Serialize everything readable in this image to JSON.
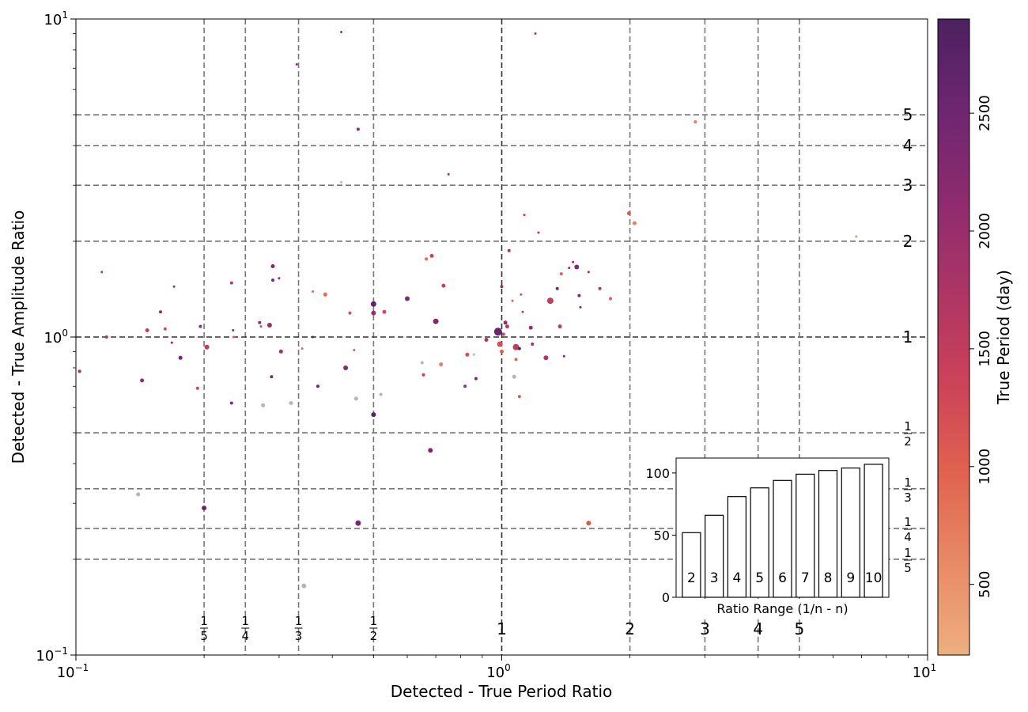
{
  "chart_data": {
    "type": "scatter",
    "x_scale": "log",
    "y_scale": "log",
    "xlim": [
      0.1,
      10
    ],
    "ylim": [
      0.1,
      10
    ],
    "xlabel": "Detected - True Period Ratio",
    "ylabel": "Detected - True Amplitude Ratio",
    "x_ticks": [
      {
        "value": 0.1,
        "base": "10",
        "exp": "−1"
      },
      {
        "value": 1,
        "base": "10",
        "exp": "0"
      },
      {
        "value": 10,
        "base": "10",
        "exp": "1"
      }
    ],
    "y_ticks": [
      {
        "value": 0.1,
        "base": "10",
        "exp": "−1"
      },
      {
        "value": 1,
        "base": "10",
        "exp": "0"
      },
      {
        "value": 10,
        "base": "10",
        "exp": "1"
      }
    ],
    "reference_lines": [
      {
        "value": 0.2,
        "num": "1",
        "den": "5"
      },
      {
        "value": 0.25,
        "num": "1",
        "den": "4"
      },
      {
        "value": 0.3333,
        "num": "1",
        "den": "3"
      },
      {
        "value": 0.5,
        "num": "1",
        "den": "2"
      },
      {
        "value": 1,
        "text": "1"
      },
      {
        "value": 2,
        "text": "2"
      },
      {
        "value": 3,
        "text": "3"
      },
      {
        "value": 4,
        "text": "4"
      },
      {
        "value": 5,
        "text": "5"
      }
    ],
    "colorbar": {
      "label": "True Period (day)",
      "range": [
        200,
        2900
      ],
      "ticks": [
        {
          "value": 500,
          "label": "500"
        },
        {
          "value": 1000,
          "label": "1000"
        },
        {
          "value": 1500,
          "label": "1500"
        },
        {
          "value": 2000,
          "label": "2000"
        },
        {
          "value": 2500,
          "label": "2500"
        }
      ],
      "colors": [
        "#edaf7f",
        "#e88a66",
        "#e0634f",
        "#cc4259",
        "#ad3565",
        "#8e2b6e",
        "#6e2670",
        "#4c2160"
      ]
    },
    "points": [
      {
        "x": 0.102,
        "y": 0.78,
        "p": 2000,
        "s": 2
      },
      {
        "x": 0.115,
        "y": 1.6,
        "p": 1700,
        "s": 1.5
      },
      {
        "x": 0.118,
        "y": 1.0,
        "p": 1800,
        "s": 2
      },
      {
        "x": 0.14,
        "y": 0.32,
        "p": null,
        "s": 2.5
      },
      {
        "x": 0.143,
        "y": 0.73,
        "p": 2100,
        "s": 2.5
      },
      {
        "x": 0.147,
        "y": 1.05,
        "p": 1500,
        "s": 2.5
      },
      {
        "x": 0.158,
        "y": 1.2,
        "p": 2100,
        "s": 2
      },
      {
        "x": 0.162,
        "y": 1.06,
        "p": 1200,
        "s": 2
      },
      {
        "x": 0.168,
        "y": 0.96,
        "p": 2200,
        "s": 1.5
      },
      {
        "x": 0.17,
        "y": 1.44,
        "p": 2000,
        "s": 1.5
      },
      {
        "x": 0.176,
        "y": 0.86,
        "p": 2400,
        "s": 2.5
      },
      {
        "x": 0.193,
        "y": 0.69,
        "p": 1400,
        "s": 2
      },
      {
        "x": 0.196,
        "y": 1.08,
        "p": 2200,
        "s": 2
      },
      {
        "x": 0.2,
        "y": 0.29,
        "p": 2600,
        "s": 3
      },
      {
        "x": 0.203,
        "y": 0.93,
        "p": 1500,
        "s": 3
      },
      {
        "x": 0.232,
        "y": 1.48,
        "p": 1600,
        "s": 2
      },
      {
        "x": 0.232,
        "y": 0.62,
        "p": 2200,
        "s": 2
      },
      {
        "x": 0.234,
        "y": 1.05,
        "p": 2300,
        "s": 1.5
      },
      {
        "x": 0.235,
        "y": 1.0,
        "p": 1100,
        "s": 1.5
      },
      {
        "x": 0.27,
        "y": 1.11,
        "p": 2100,
        "s": 2
      },
      {
        "x": 0.272,
        "y": 1.08,
        "p": 1300,
        "s": 1.5
      },
      {
        "x": 0.275,
        "y": 0.61,
        "p": null,
        "s": 2.5
      },
      {
        "x": 0.285,
        "y": 1.09,
        "p": 2000,
        "s": 3
      },
      {
        "x": 0.288,
        "y": 0.75,
        "p": 2500,
        "s": 2
      },
      {
        "x": 0.29,
        "y": 1.67,
        "p": 2300,
        "s": 2.5
      },
      {
        "x": 0.29,
        "y": 1.51,
        "p": 2400,
        "s": 2
      },
      {
        "x": 0.3,
        "y": 1.53,
        "p": 2200,
        "s": 1.5
      },
      {
        "x": 0.303,
        "y": 0.9,
        "p": 1900,
        "s": 2.5
      },
      {
        "x": 0.32,
        "y": 0.62,
        "p": null,
        "s": 2.5
      },
      {
        "x": 0.33,
        "y": 7.2,
        "p": 2000,
        "s": 1.5
      },
      {
        "x": 0.34,
        "y": 0.92,
        "p": 900,
        "s": 1.5
      },
      {
        "x": 0.343,
        "y": 0.165,
        "p": null,
        "s": 3
      },
      {
        "x": 0.36,
        "y": 1.39,
        "p": 900,
        "s": 1.5
      },
      {
        "x": 0.36,
        "y": 1.0,
        "p": 2800,
        "s": 1.5
      },
      {
        "x": 0.37,
        "y": 0.7,
        "p": 2600,
        "s": 2
      },
      {
        "x": 0.385,
        "y": 1.36,
        "p": 900,
        "s": 2.5
      },
      {
        "x": 0.42,
        "y": 9.1,
        "p": 2000,
        "s": 1.5
      },
      {
        "x": 0.42,
        "y": 3.07,
        "p": null,
        "s": 1.5
      },
      {
        "x": 0.43,
        "y": 0.8,
        "p": 2200,
        "s": 3
      },
      {
        "x": 0.44,
        "y": 1.19,
        "p": 1200,
        "s": 2
      },
      {
        "x": 0.45,
        "y": 0.91,
        "p": 1100,
        "s": 1.5
      },
      {
        "x": 0.455,
        "y": 0.64,
        "p": null,
        "s": 2.5
      },
      {
        "x": 0.46,
        "y": 4.5,
        "p": 2100,
        "s": 2
      },
      {
        "x": 0.46,
        "y": 0.26,
        "p": 2400,
        "s": 3.5
      },
      {
        "x": 0.5,
        "y": 1.27,
        "p": 2700,
        "s": 3.5
      },
      {
        "x": 0.5,
        "y": 1.19,
        "p": 2000,
        "s": 3
      },
      {
        "x": 0.5,
        "y": 0.57,
        "p": 2800,
        "s": 3
      },
      {
        "x": 0.52,
        "y": 0.66,
        "p": null,
        "s": 2
      },
      {
        "x": 0.53,
        "y": 1.2,
        "p": 1300,
        "s": 2.5
      },
      {
        "x": 0.6,
        "y": 1.32,
        "p": 2300,
        "s": 3
      },
      {
        "x": 0.65,
        "y": 0.83,
        "p": null,
        "s": 2
      },
      {
        "x": 0.655,
        "y": 0.76,
        "p": 1400,
        "s": 2
      },
      {
        "x": 0.665,
        "y": 1.76,
        "p": 900,
        "s": 2
      },
      {
        "x": 0.68,
        "y": 0.44,
        "p": 2300,
        "s": 3
      },
      {
        "x": 0.685,
        "y": 1.8,
        "p": 1400,
        "s": 2.5
      },
      {
        "x": 0.7,
        "y": 1.12,
        "p": 2300,
        "s": 3.5
      },
      {
        "x": 0.72,
        "y": 0.82,
        "p": 700,
        "s": 2.5
      },
      {
        "x": 0.73,
        "y": 1.45,
        "p": 1500,
        "s": 2.5
      },
      {
        "x": 0.75,
        "y": 3.25,
        "p": 1900,
        "s": 1.5
      },
      {
        "x": 0.82,
        "y": 0.7,
        "p": 2100,
        "s": 2
      },
      {
        "x": 0.83,
        "y": 0.88,
        "p": 1200,
        "s": 2.5
      },
      {
        "x": 0.86,
        "y": 0.88,
        "p": null,
        "s": 1.5
      },
      {
        "x": 0.87,
        "y": 0.74,
        "p": 2400,
        "s": 2
      },
      {
        "x": 0.92,
        "y": 0.98,
        "p": 1800,
        "s": 2.5
      },
      {
        "x": 0.98,
        "y": 1.04,
        "p": 2600,
        "s": 5
      },
      {
        "x": 0.99,
        "y": 0.95,
        "p": 1200,
        "s": 3.5
      },
      {
        "x": 1.0,
        "y": 0.9,
        "p": 1000,
        "s": 2.5
      },
      {
        "x": 1.0,
        "y": 1.44,
        "p": 2000,
        "s": 2
      },
      {
        "x": 1.01,
        "y": 1.02,
        "p": 1300,
        "s": 2
      },
      {
        "x": 1.02,
        "y": 1.11,
        "p": 2000,
        "s": 2.5
      },
      {
        "x": 1.03,
        "y": 1.08,
        "p": 1600,
        "s": 2.5
      },
      {
        "x": 1.04,
        "y": 1.87,
        "p": 1800,
        "s": 2
      },
      {
        "x": 1.06,
        "y": 1.3,
        "p": 1000,
        "s": 1.5
      },
      {
        "x": 1.07,
        "y": 0.75,
        "p": null,
        "s": 2.5
      },
      {
        "x": 1.08,
        "y": 0.93,
        "p": 1500,
        "s": 4
      },
      {
        "x": 1.08,
        "y": 0.85,
        "p": 1000,
        "s": 2
      },
      {
        "x": 1.1,
        "y": 0.92,
        "p": 2800,
        "s": 2
      },
      {
        "x": 1.1,
        "y": 0.65,
        "p": 1100,
        "s": 2
      },
      {
        "x": 1.11,
        "y": 1.36,
        "p": 1300,
        "s": 1.5
      },
      {
        "x": 1.12,
        "y": 1.2,
        "p": 1600,
        "s": 1.5
      },
      {
        "x": 1.13,
        "y": 2.42,
        "p": 1500,
        "s": 1.5
      },
      {
        "x": 1.17,
        "y": 1.07,
        "p": 2000,
        "s": 2.5
      },
      {
        "x": 1.18,
        "y": 0.95,
        "p": 1900,
        "s": 2
      },
      {
        "x": 1.2,
        "y": 9.0,
        "p": 1700,
        "s": 1.5
      },
      {
        "x": 1.22,
        "y": 2.13,
        "p": 1700,
        "s": 1.5
      },
      {
        "x": 1.27,
        "y": 0.86,
        "p": 1700,
        "s": 3
      },
      {
        "x": 1.3,
        "y": 1.3,
        "p": 1500,
        "s": 4
      },
      {
        "x": 1.35,
        "y": 1.42,
        "p": 2400,
        "s": 2
      },
      {
        "x": 1.37,
        "y": 1.08,
        "p": 1500,
        "s": 2.5
      },
      {
        "x": 1.38,
        "y": 1.58,
        "p": 1000,
        "s": 2
      },
      {
        "x": 1.4,
        "y": 0.87,
        "p": 2400,
        "s": 1.5
      },
      {
        "x": 1.44,
        "y": 1.65,
        "p": 2000,
        "s": 1.5
      },
      {
        "x": 1.47,
        "y": 1.72,
        "p": 2100,
        "s": 1.5
      },
      {
        "x": 1.5,
        "y": 1.66,
        "p": 2300,
        "s": 3
      },
      {
        "x": 1.52,
        "y": 1.35,
        "p": 2300,
        "s": 2
      },
      {
        "x": 1.53,
        "y": 1.24,
        "p": 2400,
        "s": 1.5
      },
      {
        "x": 1.6,
        "y": 1.6,
        "p": 2000,
        "s": 1.5
      },
      {
        "x": 1.6,
        "y": 0.26,
        "p": 1100,
        "s": 3
      },
      {
        "x": 1.7,
        "y": 1.42,
        "p": 1800,
        "s": 2
      },
      {
        "x": 1.8,
        "y": 1.32,
        "p": 1000,
        "s": 2
      },
      {
        "x": 1.99,
        "y": 2.45,
        "p": 1100,
        "s": 2.5
      },
      {
        "x": 2.05,
        "y": 2.28,
        "p": 700,
        "s": 2.5
      },
      {
        "x": 2.85,
        "y": 4.75,
        "p": 700,
        "s": 2
      },
      {
        "x": 6.8,
        "y": 2.07,
        "p": 500,
        "s": 1.5
      }
    ],
    "inset": {
      "type": "bar",
      "xlabel": "Ratio Range (1/n - n)",
      "categories": [
        "2",
        "3",
        "4",
        "5",
        "6",
        "7",
        "8",
        "9",
        "10"
      ],
      "values": [
        52,
        66,
        81,
        88,
        94,
        99,
        102,
        104,
        107
      ],
      "ylim": [
        0,
        112
      ],
      "y_ticks": [
        {
          "value": 0,
          "label": "0"
        },
        {
          "value": 50,
          "label": "50"
        },
        {
          "value": 100,
          "label": "100"
        }
      ]
    }
  }
}
